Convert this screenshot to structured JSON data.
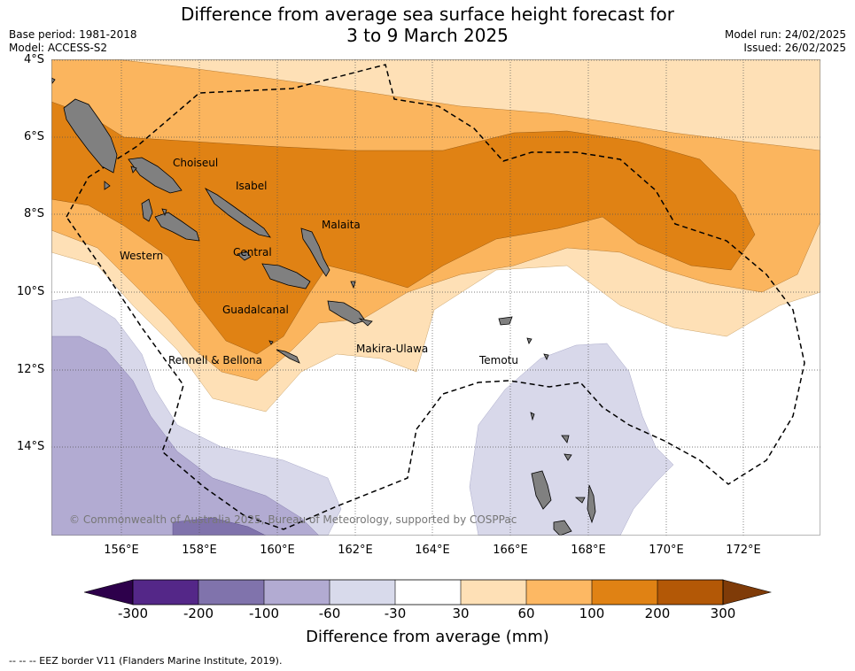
{
  "header": {
    "title_line1": "Difference from average sea surface height forecast for",
    "title_line2": "3 to 9 March 2025",
    "base_period": "Base period: 1981-2018",
    "model": "Model: ACCESS-S2",
    "model_run": "Model run: 24/02/2025",
    "issued": "Issued: 26/02/2025"
  },
  "map": {
    "lat_labels": [
      "4°S",
      "6°S",
      "8°S",
      "10°S",
      "12°S",
      "14°S"
    ],
    "lon_labels": [
      "156°E",
      "158°E",
      "160°E",
      "162°E",
      "164°E",
      "166°E",
      "168°E",
      "170°E",
      "172°E"
    ],
    "places": [
      "Choiseul",
      "Isabel",
      "Malaita",
      "Western",
      "Central",
      "Guadalcanal",
      "Rennell & Bellona",
      "Makira-Ulawa",
      "Temotu"
    ],
    "copyright": "© Commonwealth of Australia 2025, Bureau of Meteorology, supported by COSPPac",
    "colors": {
      "land": "#808080",
      "pos30_60": "#fee0b6",
      "pos60_100": "#fbb55e",
      "pos100_200": "#e08214",
      "neg30_60": "#d8d8ea",
      "neg60_100": "#b2abd2",
      "neg100_200": "#8073ac"
    }
  },
  "colorbar": {
    "ticks": [
      "-300",
      "-200",
      "-100",
      "-60",
      "-30",
      "30",
      "60",
      "100",
      "200",
      "300"
    ],
    "colors": [
      "#542788",
      "#8073ac",
      "#b2abd2",
      "#d8daeb",
      "#ffffff",
      "#fee0b6",
      "#fdb863",
      "#e08214",
      "#b35806"
    ],
    "under_color": "#2d004b",
    "over_color": "#7f3b08",
    "title": "Difference from average (mm)"
  },
  "footer": {
    "legend": "--  --  -- EEZ border V11 (Flanders Marine Institute, 2019)."
  }
}
